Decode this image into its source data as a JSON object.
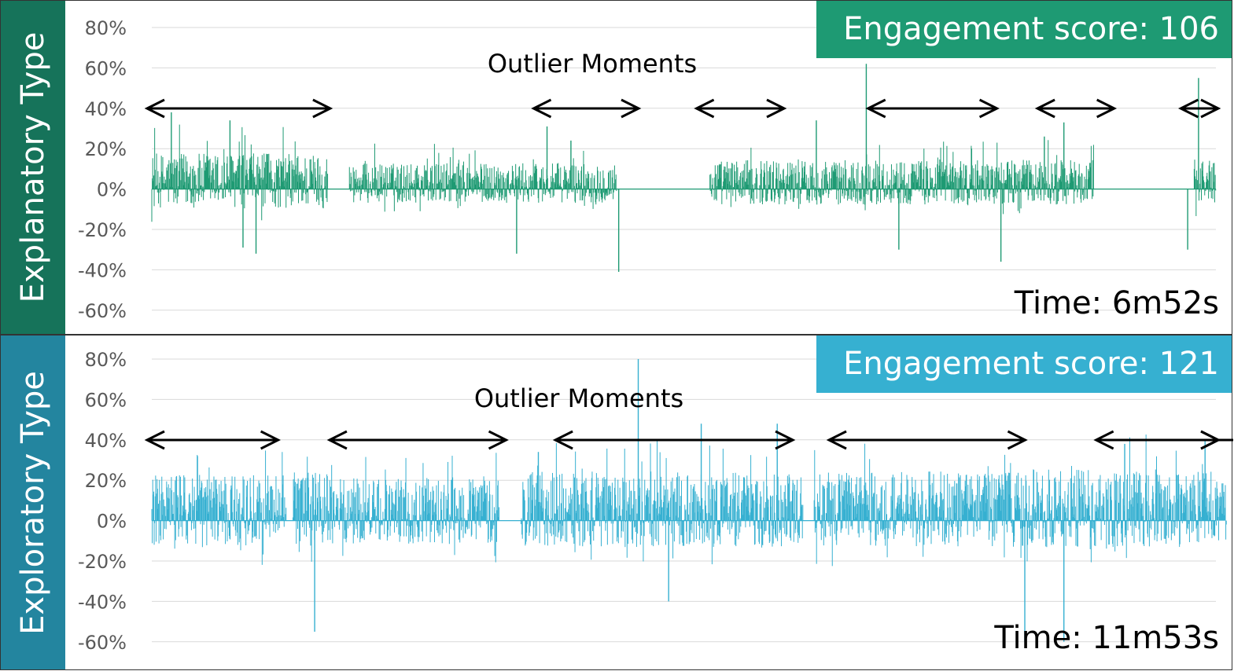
{
  "chart_data": [
    {
      "type": "bar",
      "panel_label": "Explanatory Type",
      "score_text": "Engagement score: 106",
      "time_text": "Time: 6m52s",
      "annotation": "Outlier Moments",
      "color": "#1e9a73",
      "label_bg": "#16735a",
      "score_bg": "#1e9a73",
      "y_ticks": [
        "80%",
        "60%",
        "40%",
        "20%",
        "0%",
        "-20%",
        "-40%",
        "-60%"
      ],
      "ylim": [
        -60,
        80
      ],
      "x_range": [
        0,
        412
      ],
      "grid": true,
      "outlier_ranges": [
        [
          0,
          80
        ],
        [
          178,
          222
        ],
        [
          253,
          289
        ],
        [
          332,
          387
        ],
        [
          410,
          441
        ],
        [
          476,
          490
        ]
      ],
      "segments": [
        {
          "x": [
            0,
            81
          ],
          "amp": 0.62
        },
        {
          "x": [
            91,
            214
          ],
          "amp": 0.45
        },
        {
          "x": [
            257,
            345
          ],
          "amp": 0.5
        },
        {
          "x": [
            345,
            434
          ],
          "amp": 0.5
        },
        {
          "x": [
            480,
            490
          ],
          "amp": 0.55
        }
      ],
      "spikes": [
        [
          9,
          38
        ],
        [
          36,
          34
        ],
        [
          42,
          -29
        ],
        [
          48,
          -32
        ],
        [
          182,
          31
        ],
        [
          193,
          24
        ],
        [
          215,
          -41
        ],
        [
          168,
          -32
        ],
        [
          329,
          62
        ],
        [
          344,
          -30
        ],
        [
          391,
          -36
        ],
        [
          306,
          34
        ],
        [
          477,
          -30
        ],
        [
          482,
          55
        ],
        [
          420,
          33
        ],
        [
          411,
          26
        ]
      ]
    },
    {
      "type": "bar",
      "panel_label": "Exploratory Type",
      "score_text": "Engagement score: 121",
      "time_text": "Time: 11m53s",
      "annotation": "Outlier Moments",
      "color": "#36b0d1",
      "label_bg": "#23859f",
      "score_bg": "#36b0d1",
      "y_ticks": [
        "80%",
        "60%",
        "40%",
        "20%",
        "0%",
        "-20%",
        "-40%",
        "-60%"
      ],
      "ylim": [
        -60,
        80
      ],
      "x_range": [
        0,
        713
      ],
      "grid": true,
      "outlier_ranges": [
        [
          0,
          56
        ],
        [
          84,
          161
        ],
        [
          188,
          293
        ],
        [
          314,
          400
        ],
        [
          437,
          497
        ],
        [
          616,
          650
        ]
      ],
      "segments": [
        {
          "x": [
            0,
            62
          ],
          "amp": 0.8
        },
        {
          "x": [
            65,
            84
          ],
          "amp": 0.85
        },
        {
          "x": [
            84,
            160
          ],
          "amp": 0.75
        },
        {
          "x": [
            170,
            300
          ],
          "amp": 0.85
        },
        {
          "x": [
            305,
            400
          ],
          "amp": 0.85
        },
        {
          "x": [
            400,
            440
          ],
          "amp": 0.9
        },
        {
          "x": [
            440,
            495
          ],
          "amp": 0.85
        },
        {
          "x": [
            505,
            545
          ],
          "amp": 0.9
        },
        {
          "x": [
            545,
            615
          ],
          "amp": 0.9
        },
        {
          "x": [
            615,
            650
          ],
          "amp": 0.6
        }
      ],
      "spikes": [
        [
          75,
          -55
        ],
        [
          224,
          80
        ],
        [
          253,
          48
        ],
        [
          288,
          48
        ],
        [
          178,
          34
        ],
        [
          238,
          -40
        ],
        [
          402,
          -60
        ],
        [
          420,
          -60
        ],
        [
          545,
          -50
        ],
        [
          581,
          -55
        ],
        [
          571,
          42
        ],
        [
          485,
          40
        ],
        [
          448,
          38
        ],
        [
          518,
          36
        ]
      ]
    }
  ]
}
